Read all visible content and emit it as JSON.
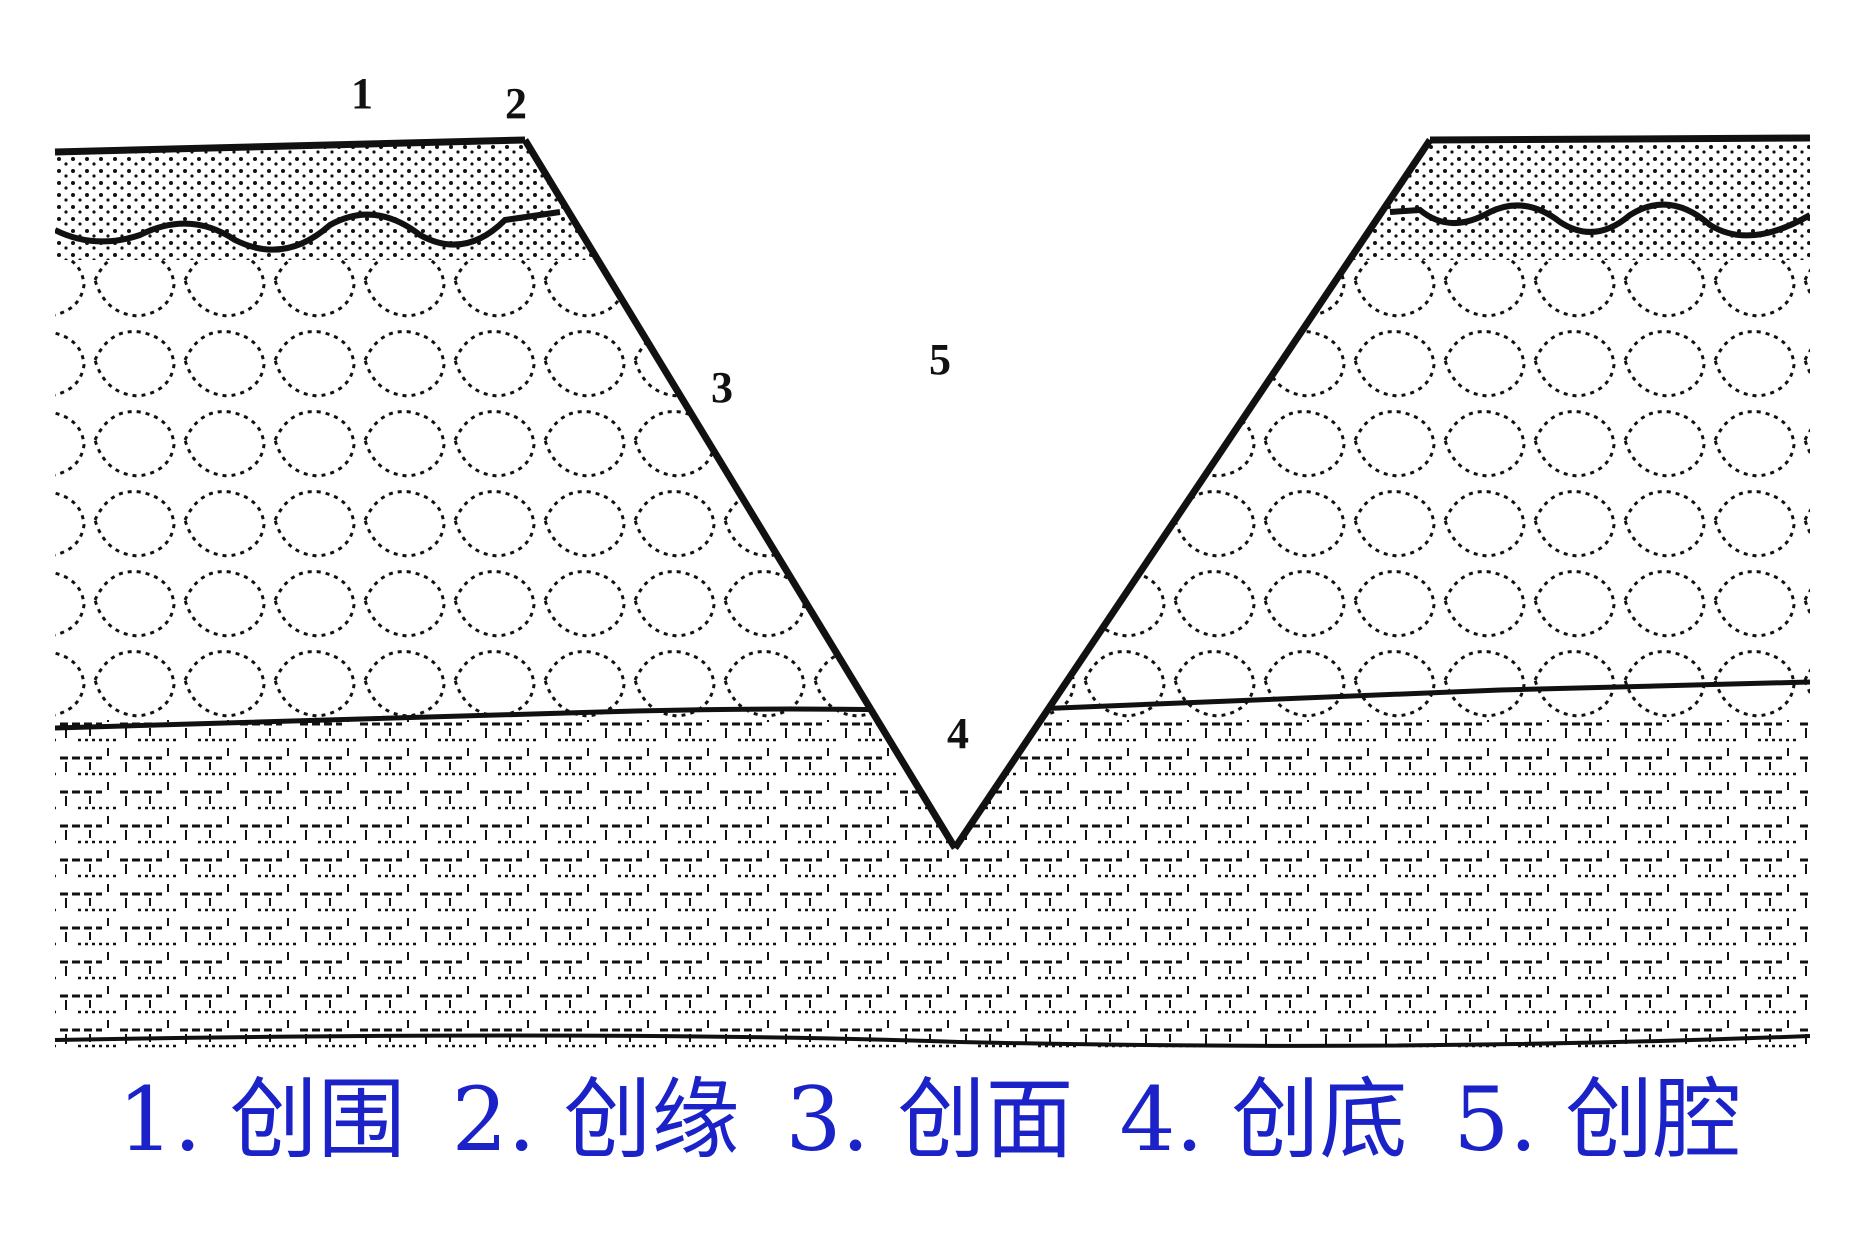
{
  "labels": {
    "one": "1",
    "two": "2",
    "three": "3",
    "four": "4",
    "five": "5"
  },
  "legend": [
    "1. 创围",
    "2. 创缘",
    "3. 创面",
    "4. 创底",
    "5. 创腔"
  ],
  "colors": {
    "ink": "#111111",
    "legend_text": "#1a22c8",
    "background": "#ffffff"
  }
}
